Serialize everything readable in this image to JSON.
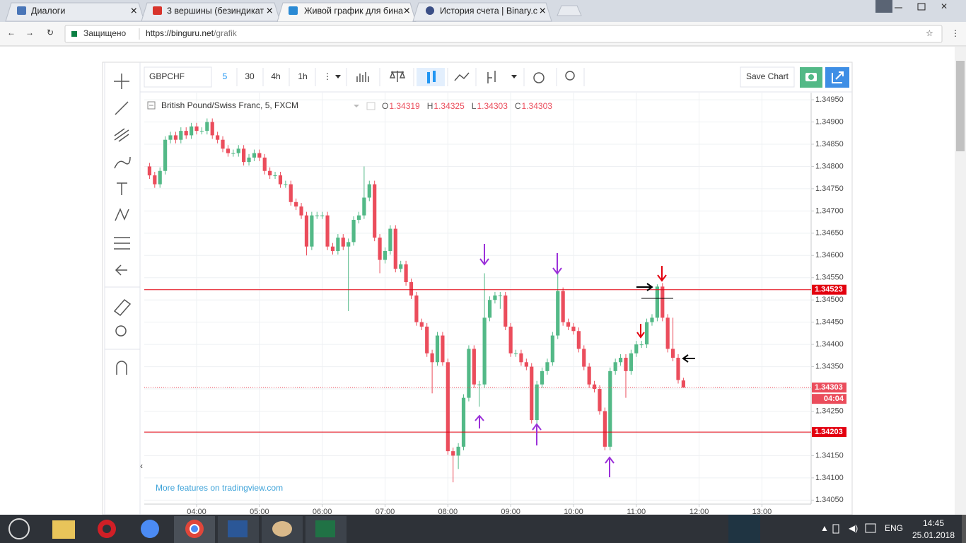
{
  "browser": {
    "tabs": [
      "Диалоги",
      "3 вершины (безиндикат",
      "Живой график для бина",
      "История счета | Binary.c"
    ],
    "secure_label": "Защищено",
    "url_host": "https://binguru.net",
    "url_path": "/grafik"
  },
  "toolbar": {
    "symbol": "GBPCHF",
    "intervals": [
      "5",
      "30",
      "4h",
      "1h"
    ],
    "save_button": "Save Chart"
  },
  "chart_data": {
    "type": "candlestick",
    "title": "British Pound/Swiss Franc, 5, FXCM",
    "ohlc_legend": [
      {
        "name": "O",
        "value": 1.34319
      },
      {
        "name": "H",
        "value": 1.34325
      },
      {
        "name": "L",
        "value": 1.34303
      },
      {
        "name": "C",
        "value": 1.34303
      }
    ],
    "x": [
      "03:15",
      "03:20",
      "03:25",
      "03:30",
      "03:35",
      "03:40",
      "03:45",
      "03:50",
      "03:55",
      "04:00",
      "04:05",
      "04:10",
      "04:15",
      "04:20",
      "04:25",
      "04:30",
      "04:35",
      "04:40",
      "04:45",
      "04:50",
      "04:55",
      "05:00",
      "05:05",
      "05:10",
      "05:15",
      "05:20",
      "05:25",
      "05:30",
      "05:35",
      "05:40",
      "05:45",
      "05:50",
      "05:55",
      "06:00",
      "06:05",
      "06:10",
      "06:15",
      "06:20",
      "06:25",
      "06:30",
      "06:35",
      "06:40",
      "06:45",
      "06:50",
      "06:55",
      "07:00",
      "07:05",
      "07:10",
      "07:15",
      "07:20",
      "07:25",
      "07:30",
      "07:35",
      "07:40",
      "07:45",
      "07:50",
      "07:55",
      "08:00",
      "08:05",
      "08:10",
      "08:15",
      "08:20",
      "08:25",
      "08:30",
      "08:35",
      "08:40",
      "08:45",
      "08:50",
      "08:55",
      "09:00",
      "09:05",
      "09:10",
      "09:15",
      "09:20",
      "09:25",
      "09:30",
      "09:35",
      "09:40",
      "09:45",
      "09:50",
      "09:55",
      "10:00",
      "10:05",
      "10:10",
      "10:15",
      "10:20",
      "10:25",
      "10:30",
      "10:35",
      "10:40",
      "10:45",
      "10:50",
      "10:55",
      "11:00",
      "11:05",
      "11:10",
      "11:15",
      "11:20",
      "11:25",
      "11:30",
      "11:35",
      "11:40",
      "11:45"
    ],
    "open": [
      1.348,
      1.3478,
      1.3476,
      1.3479,
      1.3486,
      1.3487,
      1.3486,
      1.3488,
      1.3487,
      1.3489,
      1.3488,
      1.3488,
      1.349,
      1.3487,
      1.3486,
      1.3484,
      1.3483,
      1.3483,
      1.3484,
      1.3481,
      1.3482,
      1.3483,
      1.3482,
      1.3479,
      1.3478,
      1.3478,
      1.3476,
      1.3476,
      1.3472,
      1.3471,
      1.3469,
      1.3462,
      1.3469,
      1.3469,
      1.3469,
      1.3462,
      1.3461,
      1.3464,
      1.3462,
      1.3463,
      1.3468,
      1.3469,
      1.3473,
      1.3476,
      1.3464,
      1.3459,
      1.3461,
      1.3466,
      1.3457,
      1.3458,
      1.3454,
      1.3451,
      1.3445,
      1.3444,
      1.3438,
      1.3436,
      1.3442,
      1.3436,
      1.3416,
      1.3415,
      1.3417,
      1.3428,
      1.3439,
      1.3431,
      1.3431,
      1.3446,
      1.345,
      1.3451,
      1.3451,
      1.3444,
      1.3438,
      1.3438,
      1.3436,
      1.3435,
      1.3423,
      1.3431,
      1.3434,
      1.3436,
      1.3442,
      1.3452,
      1.3445,
      1.3444,
      1.3443,
      1.3439,
      1.3435,
      1.3431,
      1.343,
      1.3425,
      1.3417,
      1.3434,
      1.3436,
      1.3437,
      1.3434,
      1.3438,
      1.344,
      1.344,
      1.3445,
      1.3446,
      1.3453,
      1.3446,
      1.3439,
      1.3437,
      1.34319
    ],
    "high": [
      1.34808,
      1.34788,
      1.34798,
      1.34868,
      1.34878,
      1.34878,
      1.34888,
      1.34888,
      1.34898,
      1.34898,
      1.34888,
      1.34908,
      1.34908,
      1.34878,
      1.34868,
      1.34848,
      1.34838,
      1.34848,
      1.34848,
      1.34828,
      1.34838,
      1.34838,
      1.34828,
      1.34798,
      1.34788,
      1.34788,
      1.34768,
      1.34768,
      1.34728,
      1.34718,
      1.34698,
      1.34698,
      1.34698,
      1.34698,
      1.34698,
      1.34628,
      1.34648,
      1.34648,
      1.34638,
      1.34688,
      1.34698,
      1.348,
      1.34768,
      1.34768,
      1.34648,
      1.34618,
      1.34668,
      1.34668,
      1.34588,
      1.34588,
      1.34548,
      1.34518,
      1.34458,
      1.34448,
      1.34388,
      1.34428,
      1.34428,
      1.34368,
      1.34168,
      1.34178,
      1.34288,
      1.34398,
      1.34398,
      1.34318,
      1.3456,
      1.34508,
      1.34518,
      1.34518,
      1.34518,
      1.34448,
      1.34388,
      1.34388,
      1.34368,
      1.34358,
      1.34318,
      1.34348,
      1.34368,
      1.34428,
      1.3456,
      1.34528,
      1.34458,
      1.34448,
      1.34438,
      1.34398,
      1.34358,
      1.34318,
      1.34308,
      1.34258,
      1.34348,
      1.34368,
      1.34378,
      1.34378,
      1.34388,
      1.34408,
      1.34408,
      1.34458,
      1.34468,
      1.34535,
      1.34538,
      1.34468,
      1.3446,
      1.34378,
      1.34325
    ],
    "low": [
      1.34772,
      1.34752,
      1.34752,
      1.34782,
      1.34852,
      1.34852,
      1.34852,
      1.34862,
      1.34862,
      1.34872,
      1.34872,
      1.34872,
      1.34862,
      1.34852,
      1.34832,
      1.34822,
      1.34822,
      1.34822,
      1.34802,
      1.34802,
      1.34812,
      1.34812,
      1.34782,
      1.34772,
      1.34772,
      1.34752,
      1.34752,
      1.34712,
      1.34702,
      1.34682,
      1.346,
      1.34612,
      1.34682,
      1.34682,
      1.34612,
      1.34602,
      1.34602,
      1.34612,
      1.34475,
      1.34622,
      1.34672,
      1.34682,
      1.34722,
      1.34632,
      1.3456,
      1.34582,
      1.34602,
      1.34562,
      1.34562,
      1.34532,
      1.34502,
      1.34442,
      1.34432,
      1.34372,
      1.3429,
      1.34352,
      1.34352,
      1.34152,
      1.3409,
      1.3412,
      1.34162,
      1.34272,
      1.34302,
      1.3426,
      1.34302,
      1.34452,
      1.34492,
      1.3448,
      1.34432,
      1.34372,
      1.34372,
      1.34352,
      1.34342,
      1.34222,
      1.34222,
      1.34302,
      1.34332,
      1.34352,
      1.34412,
      1.34442,
      1.34432,
      1.34422,
      1.34382,
      1.34342,
      1.34302,
      1.34292,
      1.34242,
      1.34162,
      1.34162,
      1.34332,
      1.34352,
      1.3428,
      1.34332,
      1.34372,
      1.34392,
      1.34392,
      1.34442,
      1.34452,
      1.34452,
      1.34382,
      1.34362,
      1.34312,
      1.34303
    ],
    "close": [
      1.3478,
      1.3476,
      1.3479,
      1.3486,
      1.3487,
      1.3486,
      1.3488,
      1.3487,
      1.3489,
      1.3488,
      1.3488,
      1.349,
      1.3487,
      1.3486,
      1.3484,
      1.3483,
      1.3483,
      1.3484,
      1.3481,
      1.3482,
      1.3483,
      1.3482,
      1.3479,
      1.3478,
      1.3478,
      1.3476,
      1.3476,
      1.3472,
      1.3471,
      1.3469,
      1.3462,
      1.3469,
      1.3469,
      1.3469,
      1.3462,
      1.3461,
      1.3464,
      1.3462,
      1.3463,
      1.3468,
      1.3469,
      1.3473,
      1.3476,
      1.3464,
      1.3459,
      1.3461,
      1.3466,
      1.3457,
      1.3458,
      1.3454,
      1.3451,
      1.3445,
      1.3444,
      1.3438,
      1.3436,
      1.3442,
      1.3436,
      1.3416,
      1.3415,
      1.3417,
      1.3428,
      1.3439,
      1.3431,
      1.3431,
      1.3446,
      1.345,
      1.3451,
      1.3451,
      1.3444,
      1.3438,
      1.3438,
      1.3436,
      1.3435,
      1.3423,
      1.3431,
      1.3434,
      1.3436,
      1.3442,
      1.3452,
      1.3445,
      1.3444,
      1.3443,
      1.3439,
      1.3435,
      1.3431,
      1.343,
      1.3425,
      1.3417,
      1.3434,
      1.3436,
      1.3437,
      1.3434,
      1.3438,
      1.344,
      1.344,
      1.3445,
      1.3446,
      1.3453,
      1.3446,
      1.3439,
      1.3437,
      1.3432,
      1.34303
    ],
    "up_color": "#53b987",
    "down_color": "#eb4d5c",
    "xlim": [
      "03:10",
      "13:47"
    ],
    "xticks": [
      "04:00",
      "05:00",
      "06:00",
      "07:00",
      "08:00",
      "09:00",
      "10:00",
      "11:00",
      "12:00",
      "13:00"
    ],
    "ylim": [
      1.34041,
      1.34966
    ],
    "yticks": [
      {
        "value": 1.3495,
        "label": "1.34950"
      },
      {
        "value": 1.349,
        "label": "1.34900"
      },
      {
        "value": 1.3485,
        "label": "1.34850"
      },
      {
        "value": 1.348,
        "label": "1.34800"
      },
      {
        "value": 1.3475,
        "label": "1.34750"
      },
      {
        "value": 1.347,
        "label": "1.34700"
      },
      {
        "value": 1.3465,
        "label": "1.34650"
      },
      {
        "value": 1.346,
        "label": "1.34600"
      },
      {
        "value": 1.3455,
        "label": "1.34550"
      },
      {
        "value": 1.345,
        "label": "1.34500"
      },
      {
        "value": 1.3445,
        "label": "1.34450"
      },
      {
        "value": 1.344,
        "label": "1.34400"
      },
      {
        "value": 1.3435,
        "label": "1.34350"
      },
      {
        "value": 1.343,
        "label": "1.34300"
      },
      {
        "value": 1.3425,
        "label": "1.34250"
      },
      {
        "value": 1.342,
        "label": "1.34200"
      },
      {
        "value": 1.3415,
        "label": "1.34150"
      },
      {
        "value": 1.341,
        "label": "1.34100"
      },
      {
        "value": 1.3405,
        "label": "1.34050"
      }
    ],
    "grid": true,
    "price_lines": [
      {
        "value": 1.34523,
        "color": "#e3000f"
      },
      {
        "value": 1.34203,
        "color": "#e3000f"
      }
    ],
    "last_price": {
      "value": 1.34303,
      "countdown": "04:04",
      "color": "#eb4d5c"
    }
  },
  "watermark": "More features on tradingview.com",
  "taskbar": {
    "language": "ENG",
    "time": "14:45",
    "date": "25.01.2018"
  }
}
